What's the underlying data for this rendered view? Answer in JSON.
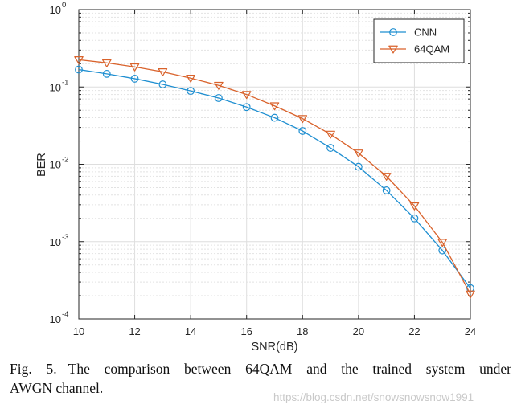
{
  "chart_data": {
    "type": "line",
    "log_y": true,
    "x": [
      10,
      11,
      12,
      13,
      14,
      15,
      16,
      17,
      18,
      19,
      20,
      21,
      22,
      23,
      24
    ],
    "xlim": [
      10,
      24
    ],
    "ylim": [
      0.0001,
      1
    ],
    "xlabel": "SNR(dB)",
    "ylabel": "BER",
    "x_ticks": [
      "10",
      "12",
      "14",
      "16",
      "18",
      "20",
      "22",
      "24"
    ],
    "y_ticks": [
      {
        "base": "10",
        "exp": "0"
      },
      {
        "base": "10",
        "exp": "-1"
      },
      {
        "base": "10",
        "exp": "-2"
      },
      {
        "base": "10",
        "exp": "-3"
      },
      {
        "base": "10",
        "exp": "-4"
      }
    ],
    "grid": true,
    "legend_position": "top-right",
    "series": [
      {
        "name": "CNN",
        "marker": "circle",
        "color": "#1f8fd1",
        "values": [
          0.168,
          0.148,
          0.128,
          0.108,
          0.089,
          0.072,
          0.055,
          0.04,
          0.027,
          0.0163,
          0.0093,
          0.0046,
          0.002,
          0.00077,
          0.00025
        ]
      },
      {
        "name": "64QAM",
        "marker": "triangle-down",
        "color": "#d9622b",
        "values": [
          0.225,
          0.205,
          0.182,
          0.157,
          0.13,
          0.105,
          0.08,
          0.057,
          0.039,
          0.0245,
          0.014,
          0.007,
          0.0029,
          0.00098,
          0.00021
        ]
      }
    ]
  },
  "caption": {
    "label": "Fig. 5.",
    "line1": "The comparison between 64QAM and the trained system under",
    "line2": "AWGN channel."
  },
  "watermark": "https://blog.csdn.net/snowsnowsnow1991"
}
